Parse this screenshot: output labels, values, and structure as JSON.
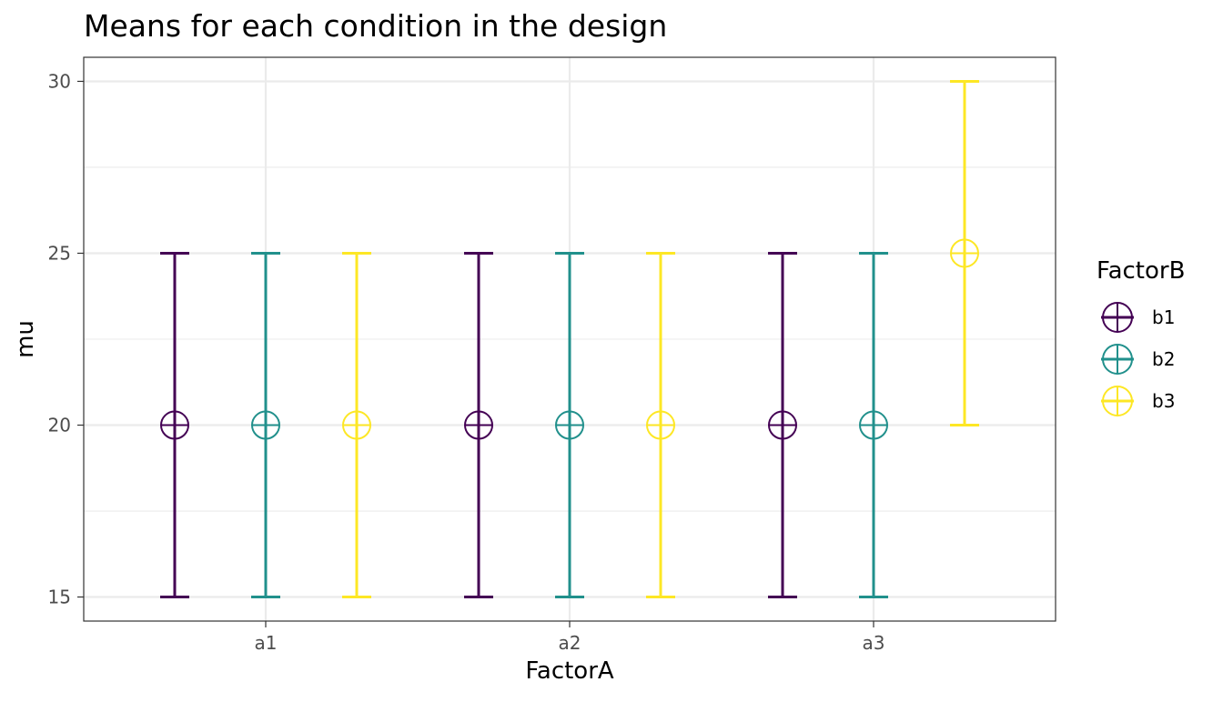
{
  "chart_data": {
    "type": "scatter",
    "title": "Means for each condition in the design",
    "xlabel": "FactorA",
    "ylabel": "mu",
    "categories": [
      "a1",
      "a2",
      "a3"
    ],
    "ylim": [
      14.3,
      30.7
    ],
    "yticks": [
      15,
      20,
      25,
      30
    ],
    "grid": true,
    "legend": {
      "title": "FactorB",
      "placement": "right"
    },
    "series": [
      {
        "name": "b1",
        "color": "#440154",
        "values": [
          20,
          20,
          20
        ],
        "lower": [
          15,
          15,
          15
        ],
        "upper": [
          25,
          25,
          25
        ]
      },
      {
        "name": "b2",
        "color": "#21908C",
        "values": [
          20,
          20,
          20
        ],
        "lower": [
          15,
          15,
          15
        ],
        "upper": [
          25,
          25,
          25
        ]
      },
      {
        "name": "b3",
        "color": "#FDE725",
        "values": [
          20,
          20,
          25
        ],
        "lower": [
          15,
          15,
          20
        ],
        "upper": [
          25,
          25,
          30
        ]
      }
    ]
  }
}
